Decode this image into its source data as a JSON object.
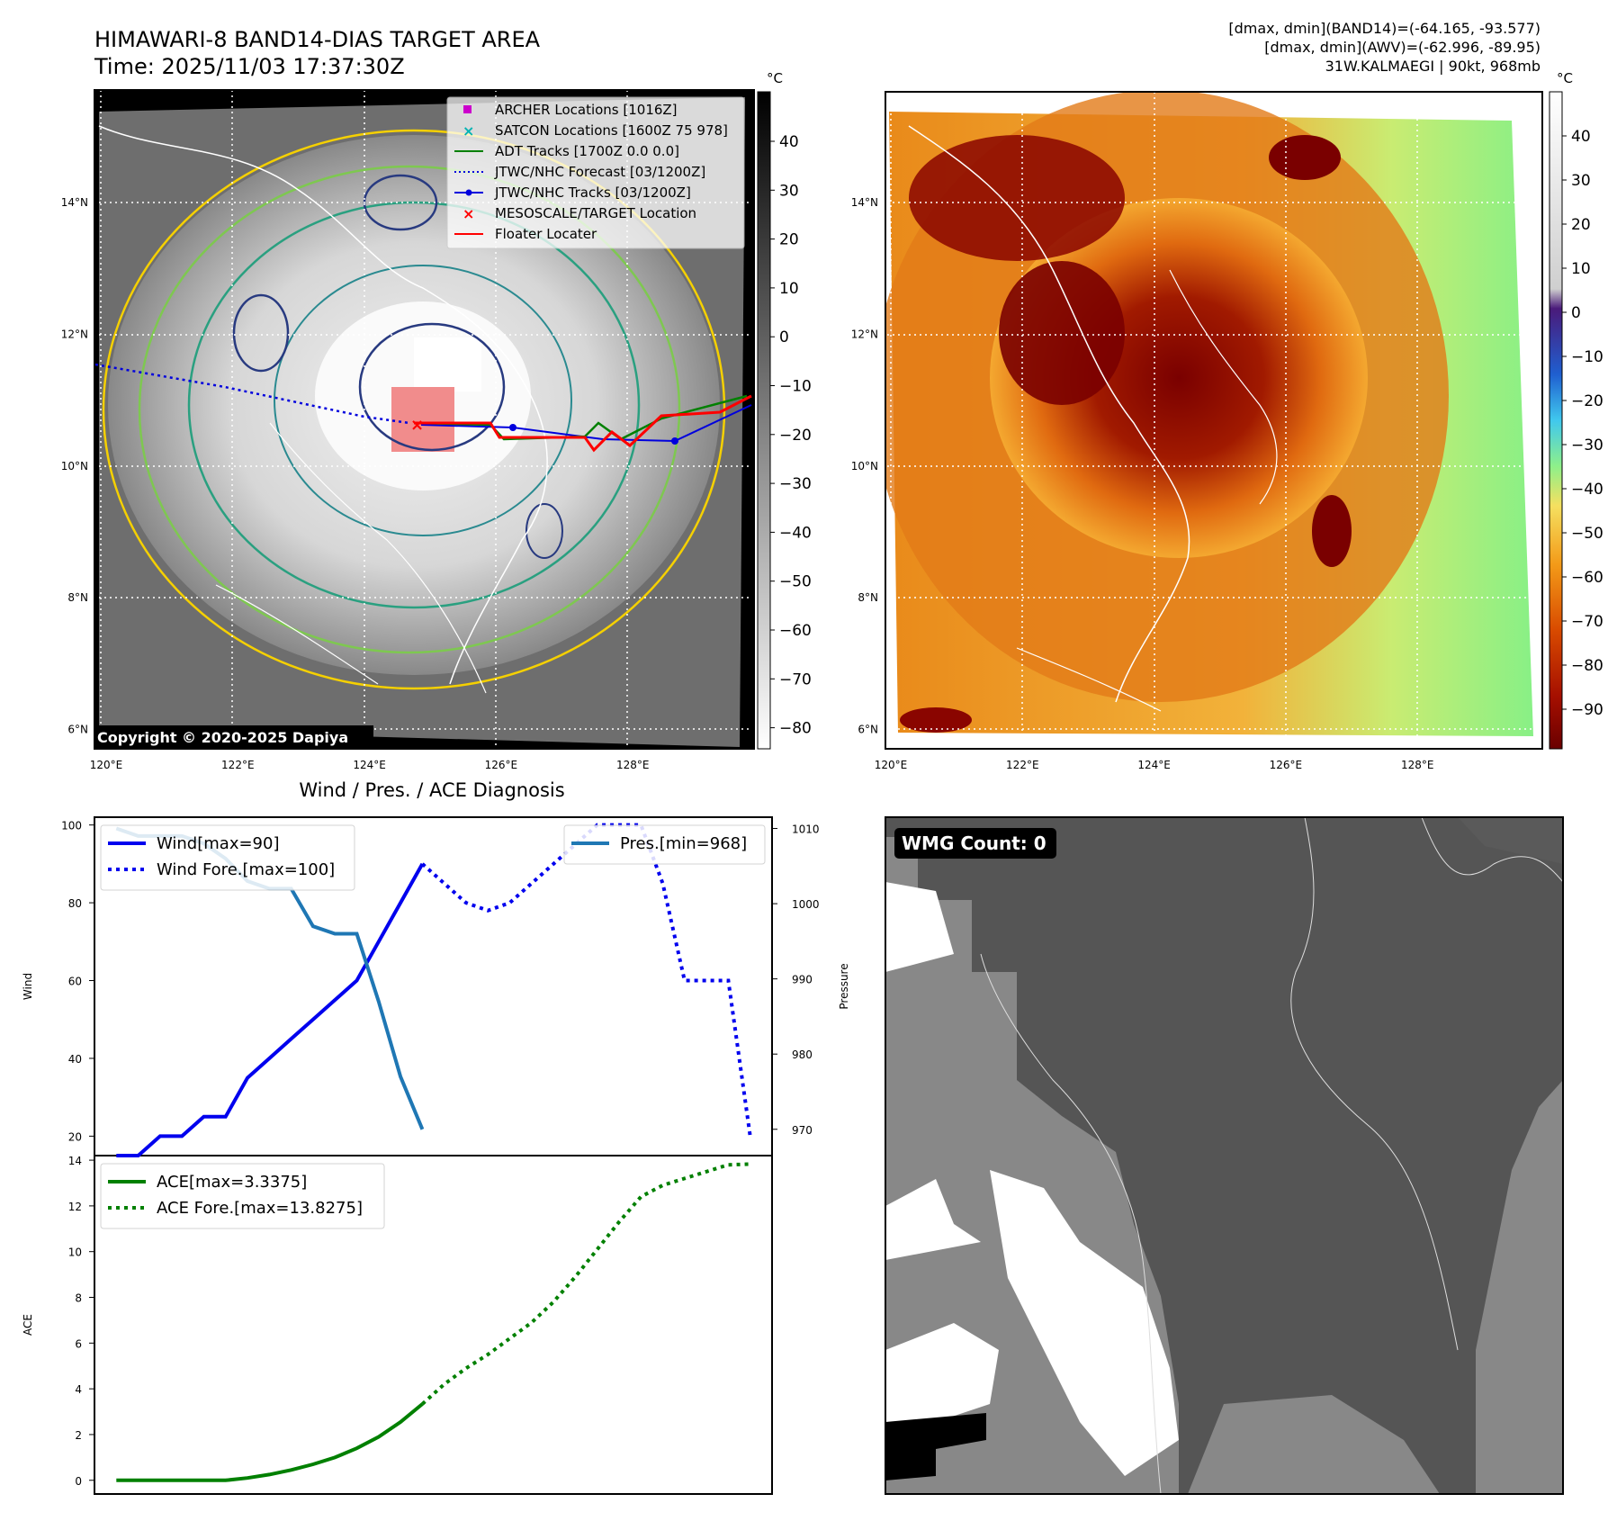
{
  "panel_ir": {
    "title": "HIMAWARI-8 BAND14-DIAS TARGET AREA",
    "time": "Time: 2025/11/03 17:37:30Z",
    "copyright": "Copyright © 2020-2025 Dapiya",
    "legend": [
      {
        "label": "ARCHER Locations [1016Z]",
        "color": "#cc00cc",
        "marker": "square"
      },
      {
        "label": "SATCON Locations [1600Z 75 978]",
        "color": "#00b3b3",
        "marker": "x"
      },
      {
        "label": "ADT Tracks [1700Z 0.0 0.0]",
        "color": "#008000",
        "marker": "line"
      },
      {
        "label": "JTWC/NHC Forecast [03/1200Z]",
        "color": "#0000dd",
        "marker": "dotted"
      },
      {
        "label": "JTWC/NHC Tracks [03/1200Z]",
        "color": "#0000dd",
        "marker": "line-dot"
      },
      {
        "label": "MESOSCALE/TARGET Location",
        "color": "#ff0000",
        "marker": "x"
      },
      {
        "label": "Floater Locater",
        "color": "#ff0000",
        "marker": "line"
      }
    ],
    "cbar_unit": "°C",
    "cbar_ticks": [
      "40",
      "30",
      "20",
      "10",
      "0",
      "−10",
      "−20",
      "−30",
      "−40",
      "−50",
      "−60",
      "−70",
      "−80"
    ],
    "lat_labels": [
      "14°N",
      "12°N",
      "10°N",
      "8°N",
      "6°N"
    ],
    "lon_labels": [
      "120°E",
      "122°E",
      "124°E",
      "126°E",
      "128°E"
    ]
  },
  "panel_awv": {
    "info_lines": [
      "[dmax, dmin](BAND14)=(-64.165, -93.577)",
      "[dmax, dmin](AWV)=(-62.996, -89.95)",
      "31W.KALMAEGI | 90kt, 968mb"
    ],
    "cbar_unit": "°C",
    "cbar_ticks": [
      "40",
      "30",
      "20",
      "10",
      "0",
      "−10",
      "−20",
      "−30",
      "−40",
      "−50",
      "−60",
      "−70",
      "−80",
      "−90"
    ],
    "lat_labels": [
      "14°N",
      "12°N",
      "10°N",
      "8°N",
      "6°N"
    ],
    "lon_labels": [
      "120°E",
      "122°E",
      "124°E",
      "126°E",
      "128°E"
    ]
  },
  "panel_wmg": {
    "badge": "WMG Count: 0"
  },
  "chart_data": [
    {
      "type": "line",
      "title": "Wind / Pres. / ACE Diagnosis",
      "ylabel": "Wind",
      "y2label": "Pressure",
      "ylim": [
        15,
        102
      ],
      "y2lim": [
        966.5,
        1011.5
      ],
      "xlim": [
        -1,
        30
      ],
      "yticks": [
        "100",
        "80",
        "60",
        "40",
        "20"
      ],
      "y2ticks": [
        "1010",
        "1000",
        "990",
        "980",
        "970"
      ],
      "series": [
        {
          "name": "Wind[max=90]",
          "color": "#0000ee",
          "style": "solid",
          "axis": "left",
          "x": [
            0,
            1,
            2,
            3,
            4,
            5,
            6,
            7,
            8,
            9,
            10,
            11,
            12,
            13,
            14
          ],
          "y": [
            15,
            15,
            20,
            20,
            25,
            25,
            35,
            40,
            45,
            50,
            55,
            60,
            70,
            80,
            90
          ]
        },
        {
          "name": "Wind Fore.[max=100]",
          "color": "#0000ee",
          "style": "dotted",
          "axis": "left",
          "x": [
            14,
            15,
            16,
            17,
            18,
            19,
            20,
            21,
            22,
            23,
            24,
            25,
            26,
            27,
            28,
            29
          ],
          "y": [
            90,
            85,
            80,
            78,
            80,
            85,
            90,
            95,
            100,
            100,
            100,
            85,
            60,
            60,
            60,
            20
          ]
        },
        {
          "name": "Pres.[min=968]",
          "color": "#1f77b4",
          "style": "solid",
          "axis": "right",
          "x": [
            0,
            1,
            2,
            3,
            4,
            5,
            6,
            7,
            8,
            9,
            10,
            11,
            12,
            13,
            14
          ],
          "y": [
            1010,
            1009,
            1009,
            1009,
            1008,
            1006,
            1003,
            1002,
            1002,
            997,
            996,
            996,
            987,
            977,
            970
          ]
        }
      ]
    },
    {
      "type": "line",
      "ylabel": "ACE",
      "ylim": [
        -0.6,
        14.2
      ],
      "xlim": [
        -1,
        30
      ],
      "yticks": [
        "14",
        "12",
        "10",
        "8",
        "6",
        "4",
        "2",
        "0"
      ],
      "series": [
        {
          "name": "ACE[max=3.3375]",
          "color": "#008000",
          "style": "solid",
          "x": [
            0,
            1,
            2,
            3,
            4,
            5,
            6,
            7,
            8,
            9,
            10,
            11,
            12,
            13,
            14
          ],
          "y": [
            0,
            0,
            0,
            0,
            0,
            0,
            0.1,
            0.25,
            0.45,
            0.7,
            1.0,
            1.4,
            1.9,
            2.55,
            3.3375
          ]
        },
        {
          "name": "ACE Fore.[max=13.8275]",
          "color": "#008000",
          "style": "dotted",
          "x": [
            14,
            15,
            16,
            17,
            18,
            19,
            20,
            21,
            22,
            23,
            24,
            25,
            26,
            27,
            28,
            29
          ],
          "y": [
            3.3375,
            4.2,
            4.9,
            5.5,
            6.2,
            6.9,
            7.8,
            8.9,
            10.1,
            11.3,
            12.4,
            12.9,
            13.2,
            13.5,
            13.8,
            13.8275
          ]
        }
      ]
    }
  ]
}
